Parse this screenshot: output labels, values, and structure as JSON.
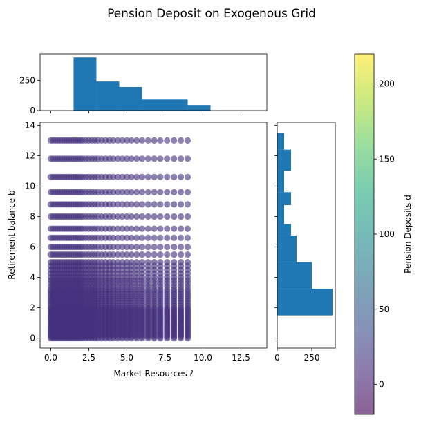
{
  "figure": {
    "title": "Pension Deposit on Exogenous Grid"
  },
  "chart_data": [
    {
      "type": "scatter",
      "role": "main",
      "xlabel": "Market Resources ℓ",
      "ylabel": "Retirement balance b",
      "xlim": [
        -0.7,
        14.2
      ],
      "ylim": [
        -0.65,
        14.2
      ],
      "xticks": [
        0,
        2.5,
        5,
        7.5,
        10,
        12.5
      ],
      "xtick_labels": [
        "0.0",
        "2.5",
        "5.0",
        "7.5",
        "10.0",
        "12.5"
      ],
      "yticks": [
        0,
        2,
        4,
        6,
        8,
        10,
        12,
        14
      ],
      "ytick_labels": [
        "0",
        "2",
        "4",
        "6",
        "8",
        "10",
        "12",
        "14"
      ],
      "x_grid": [
        0,
        0.15,
        0.3,
        0.45,
        0.6,
        0.75,
        0.9,
        1.05,
        1.2,
        1.35,
        1.5,
        1.65,
        1.8,
        1.95,
        2.1,
        2.3,
        2.5,
        2.7,
        2.9,
        3.1,
        3.35,
        3.6,
        3.85,
        4.1,
        4.4,
        4.7,
        5.0,
        5.3,
        5.65,
        6.0,
        6.4,
        6.8,
        7.2,
        7.65,
        8.1,
        8.55,
        9.0
      ],
      "y_grid": [
        0,
        0.1,
        0.2,
        0.3,
        0.4,
        0.5,
        0.6,
        0.7,
        0.8,
        0.9,
        1.0,
        1.1,
        1.2,
        1.3,
        1.4,
        1.5,
        1.6,
        1.7,
        1.8,
        1.9,
        2.0,
        2.15,
        2.3,
        2.45,
        2.6,
        2.75,
        2.9,
        3.05,
        3.2,
        3.4,
        3.6,
        3.8,
        4.0,
        4.25,
        4.5,
        4.75,
        5.0,
        5.5,
        6.0,
        6.6,
        7.2,
        8.0,
        8.8,
        9.6,
        10.6,
        11.8,
        13.0
      ],
      "point_color": "#46327e",
      "point_alpha": 0.62,
      "grid": false,
      "grid_note": "points plotted at every combination of x_grid and y_grid"
    },
    {
      "type": "bar",
      "role": "top-histogram",
      "bin_edges": [
        1.5,
        3.0,
        4.5,
        6.0,
        9.0,
        10.5
      ],
      "counts": [
        440,
        240,
        195,
        90,
        45
      ],
      "xlim": [
        -0.7,
        14.2
      ],
      "ylim": [
        0,
        470
      ],
      "yticks": [
        0,
        250
      ],
      "ytick_labels": [
        "0",
        "250"
      ],
      "bar_color": "#1f77b4"
    },
    {
      "type": "bar",
      "orientation": "horizontal",
      "role": "right-histogram",
      "bin_edges": [
        1.5,
        3.25,
        5.0,
        6.75,
        7.5,
        8.75,
        9.6,
        11.0,
        12.4,
        13.5
      ],
      "counts": [
        400,
        250,
        140,
        100,
        50,
        100,
        50,
        100,
        50
      ],
      "xlim": [
        0,
        420
      ],
      "ylim": [
        -0.65,
        14.2
      ],
      "xticks": [
        0,
        250
      ],
      "xtick_labels": [
        "0",
        "250"
      ],
      "bar_color": "#1f77b4"
    },
    {
      "type": "colorbar",
      "role": "colorbar",
      "label": "Pension Deposits d",
      "range": [
        -20,
        220
      ],
      "ticks": [
        0,
        50,
        100,
        150,
        200
      ],
      "tick_labels": [
        "0",
        "50",
        "100",
        "150",
        "200"
      ],
      "colormap": "viridis",
      "alpha": 0.62
    }
  ]
}
